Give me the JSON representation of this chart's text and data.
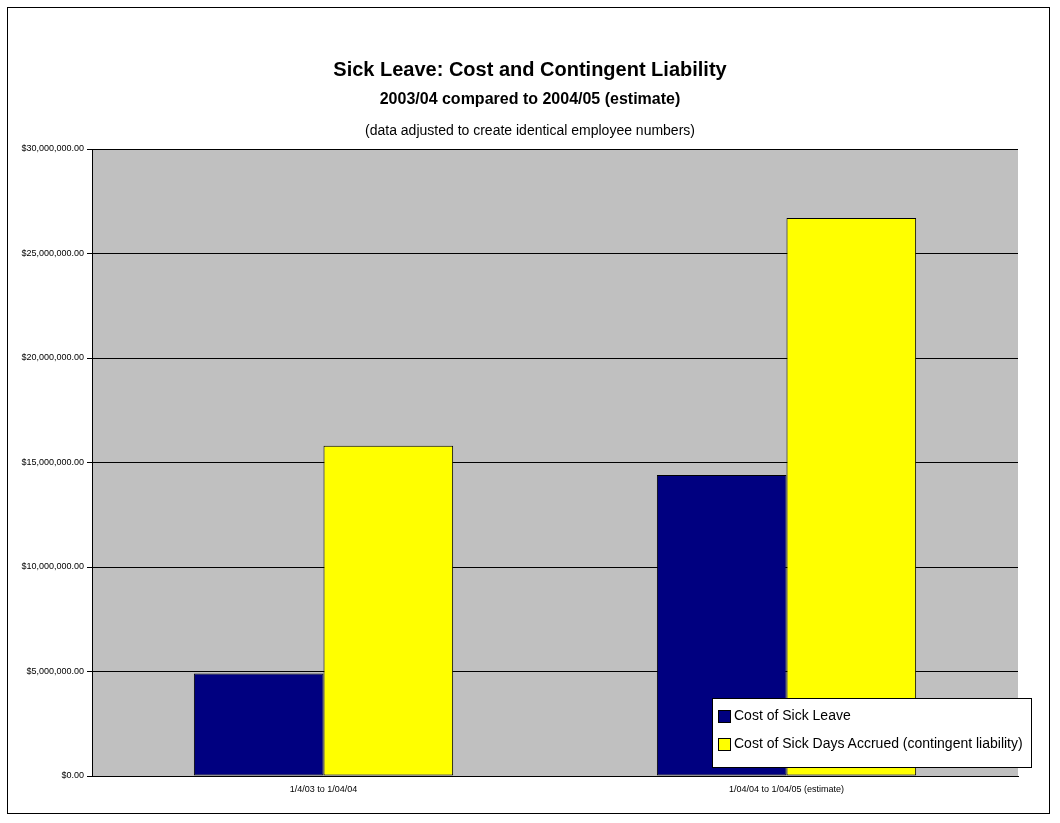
{
  "chart_data": {
    "type": "bar",
    "title": "Sick Leave: Cost and Contingent Liability",
    "subtitle": "2003/04 compared to 2004/05 (estimate)",
    "annotations": [
      "(data adjusted to create identical employee numbers)"
    ],
    "categories": [
      "1/4/03 to 1/04/04",
      "1/04/04 to 1/04/05 (estimate)"
    ],
    "series": [
      {
        "name": "Cost of Sick Leave",
        "color": "#000080",
        "values": [
          4900000,
          14400000
        ]
      },
      {
        "name": "Cost of Sick Days Accrued (contingent liability)",
        "color": "#ffff00",
        "values": [
          15800000,
          26700000
        ]
      }
    ],
    "ylim": [
      0,
      30000000
    ],
    "yticks": [
      {
        "value": 0,
        "label": "$0.00"
      },
      {
        "value": 5000000,
        "label": "$5,000,000.00"
      },
      {
        "value": 10000000,
        "label": "$10,000,000.00"
      },
      {
        "value": 15000000,
        "label": "$15,000,000.00"
      },
      {
        "value": 20000000,
        "label": "$20,000,000.00"
      },
      {
        "value": 25000000,
        "label": "$25,000,000.00"
      },
      {
        "value": 30000000,
        "label": "$30,000,000.00"
      }
    ],
    "grid": "y",
    "legend": "bottom right"
  }
}
